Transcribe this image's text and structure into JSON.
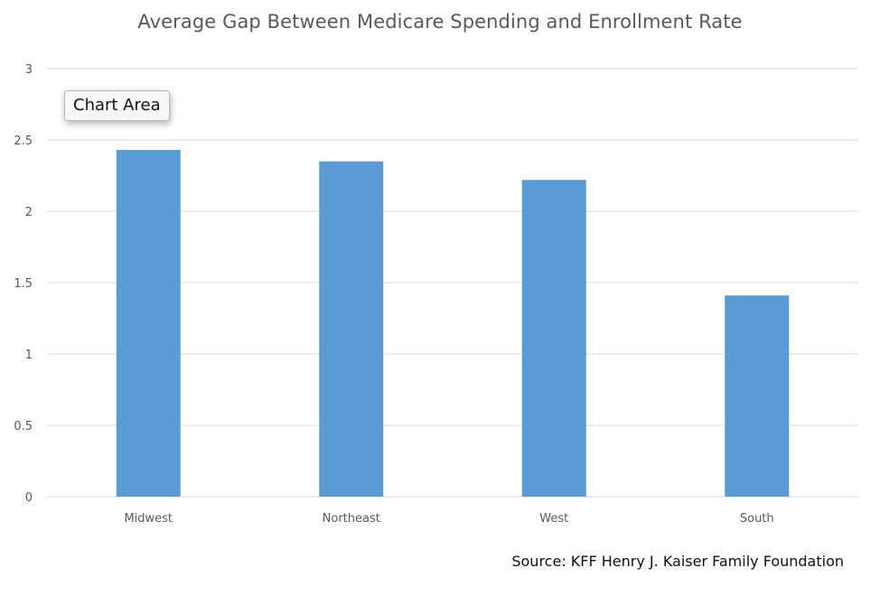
{
  "chart_data": {
    "type": "bar",
    "title": "Average Gap Between Medicare Spending and Enrollment Rate",
    "categories": [
      "Midwest",
      "Northeast",
      "West",
      "South"
    ],
    "values": [
      2.43,
      2.35,
      2.22,
      1.41
    ],
    "ylim": [
      0,
      3
    ],
    "yticks": [
      0,
      0.5,
      1,
      1.5,
      2,
      2.5,
      3
    ],
    "ytick_labels": [
      "0",
      "0.5",
      "1",
      "1.5",
      "2",
      "2.5",
      "3"
    ],
    "xlabel": "",
    "ylabel": "",
    "grid": true,
    "legend": "none",
    "bar_color": "#5B9BD5",
    "grid_color": "#D9D9D9"
  },
  "tooltip": {
    "label": "Chart Area"
  },
  "source": {
    "text": "Source: KFF Henry J. Kaiser Family Foundation"
  }
}
